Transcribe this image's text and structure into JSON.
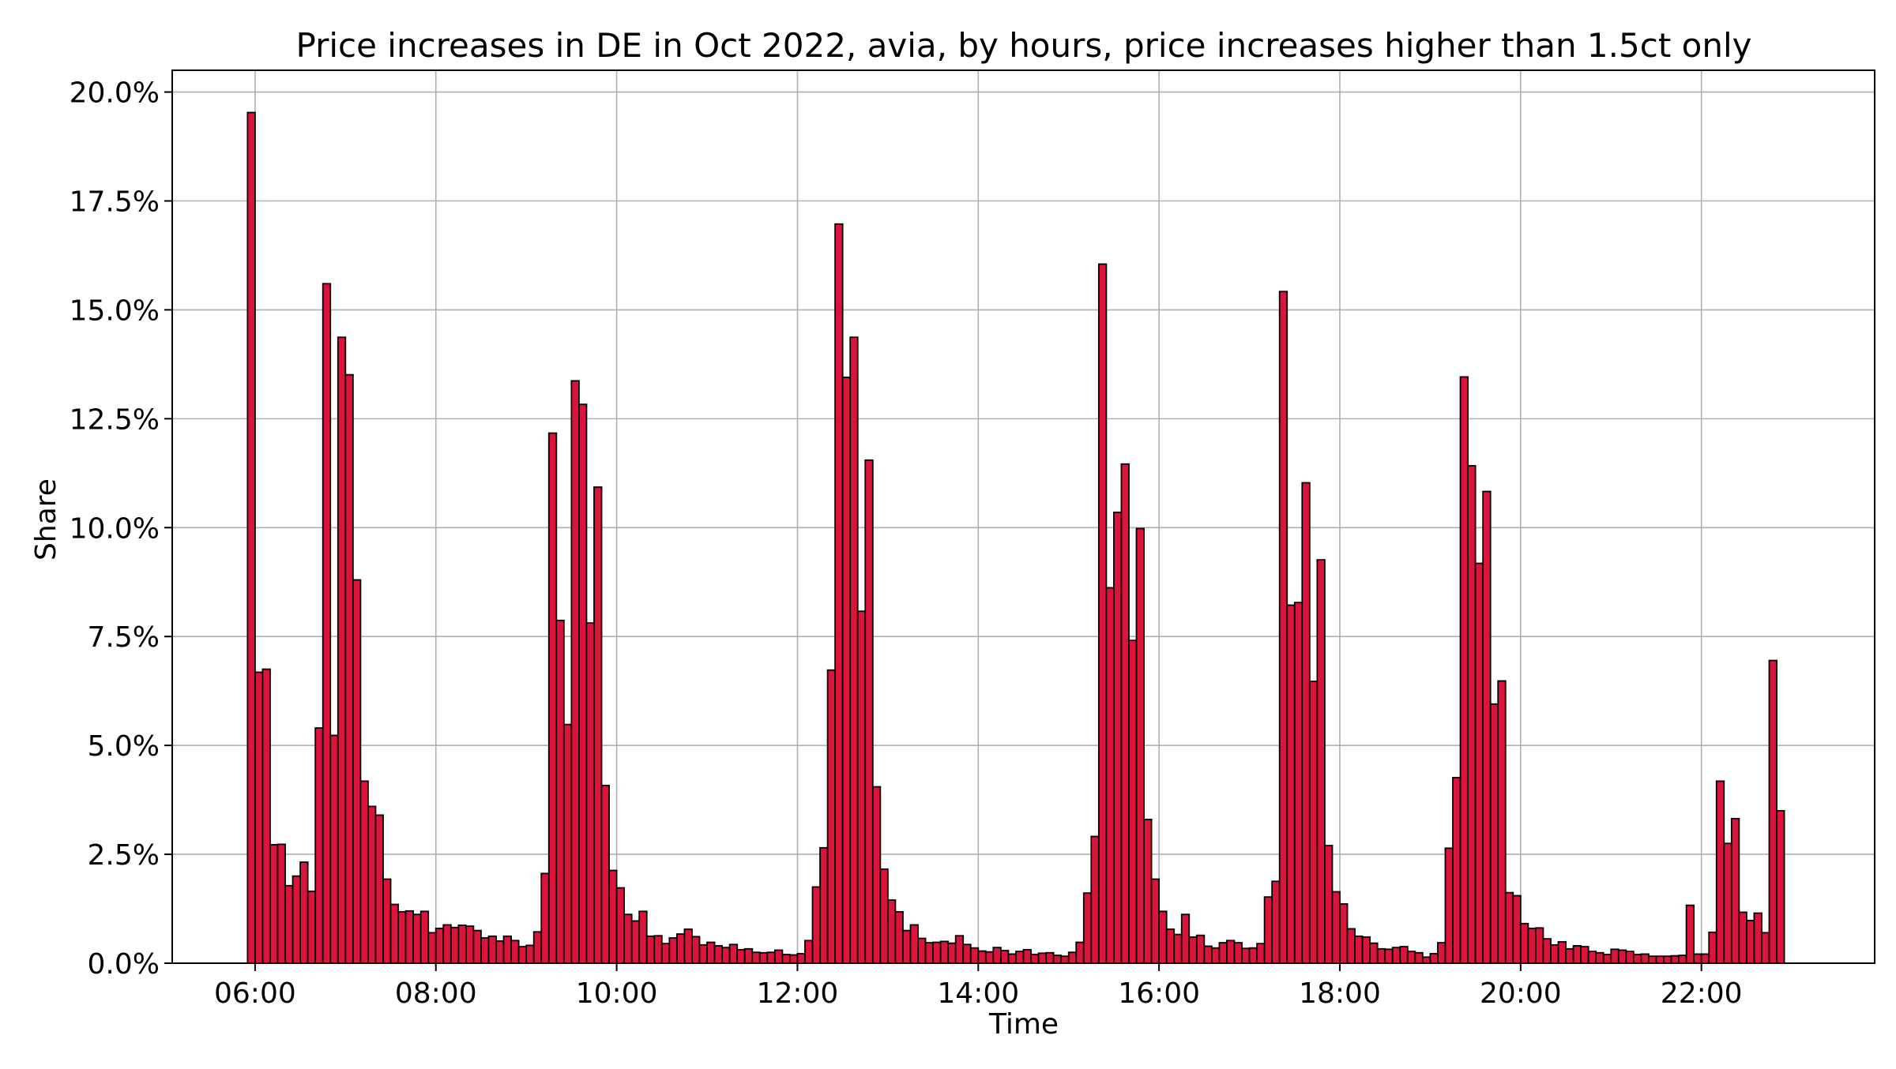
{
  "chart_data": {
    "type": "bar",
    "title": "Price increases in DE in Oct 2022, avia, by hours, price increases higher than 1.5ct only",
    "xlabel": "Time",
    "ylabel": "Share",
    "bin_width_minutes": 5,
    "first_bin_start": "05:55",
    "xlim": [
      "05:05",
      "23:55"
    ],
    "ylim": [
      0,
      0.205
    ],
    "grid": true,
    "x_ticks": [
      "06:00",
      "08:00",
      "10:00",
      "12:00",
      "14:00",
      "16:00",
      "18:00",
      "20:00",
      "22:00"
    ],
    "y_ticks": [
      "0.0%",
      "2.5%",
      "5.0%",
      "7.5%",
      "10.0%",
      "12.5%",
      "15.0%",
      "17.5%",
      "20.0%"
    ],
    "bar_color": "#DC143C",
    "edge_color": "#000000",
    "values": [
      0.1953,
      0.0668,
      0.0675,
      0.0272,
      0.0273,
      0.0178,
      0.02,
      0.0232,
      0.0165,
      0.054,
      0.156,
      0.0523,
      0.1437,
      0.1351,
      0.088,
      0.0418,
      0.036,
      0.034,
      0.0193,
      0.0135,
      0.0118,
      0.012,
      0.0112,
      0.0119,
      0.007,
      0.008,
      0.0088,
      0.0082,
      0.0087,
      0.0085,
      0.0075,
      0.0058,
      0.0062,
      0.0051,
      0.0062,
      0.0052,
      0.0038,
      0.0041,
      0.0072,
      0.0206,
      0.1217,
      0.0787,
      0.0548,
      0.1337,
      0.1283,
      0.0781,
      0.1093,
      0.0408,
      0.0213,
      0.0173,
      0.0112,
      0.0097,
      0.0119,
      0.0062,
      0.0063,
      0.0045,
      0.0058,
      0.0067,
      0.0078,
      0.0061,
      0.0042,
      0.0048,
      0.004,
      0.0036,
      0.0043,
      0.0031,
      0.0033,
      0.0025,
      0.0024,
      0.0025,
      0.003,
      0.002,
      0.0019,
      0.0022,
      0.0052,
      0.0175,
      0.0265,
      0.0673,
      0.1697,
      0.1345,
      0.1437,
      0.0808,
      0.1155,
      0.0405,
      0.0216,
      0.0145,
      0.0118,
      0.0075,
      0.0088,
      0.0057,
      0.0047,
      0.0048,
      0.005,
      0.0046,
      0.0063,
      0.0043,
      0.0035,
      0.0028,
      0.0026,
      0.0036,
      0.0029,
      0.0021,
      0.0027,
      0.0031,
      0.002,
      0.0023,
      0.0024,
      0.0018,
      0.0016,
      0.0025,
      0.0048,
      0.0161,
      0.0291,
      0.1605,
      0.0862,
      0.1035,
      0.1146,
      0.0741,
      0.0998,
      0.033,
      0.0193,
      0.0119,
      0.0078,
      0.0066,
      0.0112,
      0.006,
      0.0064,
      0.0039,
      0.0035,
      0.0047,
      0.0052,
      0.0047,
      0.0034,
      0.0035,
      0.0045,
      0.0152,
      0.0188,
      0.1542,
      0.0822,
      0.0828,
      0.1103,
      0.0647,
      0.0926,
      0.027,
      0.0164,
      0.0136,
      0.0079,
      0.0062,
      0.006,
      0.0046,
      0.0033,
      0.0032,
      0.0036,
      0.0038,
      0.0027,
      0.0024,
      0.0014,
      0.0022,
      0.0047,
      0.0264,
      0.0426,
      0.1346,
      0.1142,
      0.0918,
      0.1083,
      0.0595,
      0.0648,
      0.0162,
      0.0155,
      0.0091,
      0.008,
      0.0081,
      0.0056,
      0.0042,
      0.0049,
      0.0033,
      0.004,
      0.0038,
      0.0027,
      0.0024,
      0.002,
      0.0032,
      0.003,
      0.0027,
      0.002,
      0.0021,
      0.0016,
      0.0016,
      0.0016,
      0.0017,
      0.0018,
      0.0133,
      0.0021,
      0.0021,
      0.0071,
      0.0418,
      0.0275,
      0.0332,
      0.0117,
      0.0098,
      0.0115,
      0.007,
      0.0695,
      0.035
    ]
  }
}
